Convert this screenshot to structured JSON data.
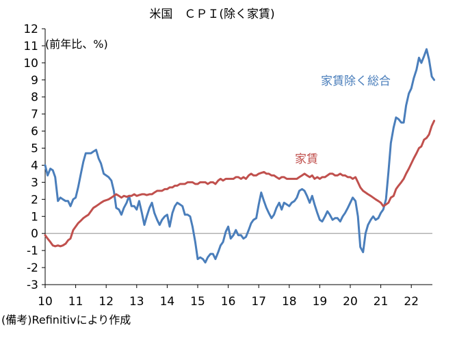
{
  "chart_data": {
    "type": "line",
    "title": "米国　ＣＰＩ(除く家賃)",
    "unit_label": "(前年比、%)",
    "note": "(備考)Refinitivにより作成",
    "xlim": [
      2010.0,
      2022.8
    ],
    "ylim": [
      -3,
      12
    ],
    "x_ticks": [
      "10",
      "11",
      "12",
      "13",
      "14",
      "15",
      "16",
      "17",
      "18",
      "19",
      "20",
      "21",
      "22"
    ],
    "y_ticks": [
      "12",
      "11",
      "10",
      "9",
      "8",
      "7",
      "6",
      "5",
      "4",
      "3",
      "2",
      "1",
      "0",
      "-1",
      "-2",
      "-3"
    ],
    "zero_line": true,
    "series": [
      {
        "name": "家賃除く総合",
        "color": "#4a7ebb",
        "points": [
          [
            2010.0,
            4.0
          ],
          [
            2010.08,
            3.4
          ],
          [
            2010.17,
            3.8
          ],
          [
            2010.25,
            3.7
          ],
          [
            2010.33,
            3.3
          ],
          [
            2010.42,
            1.9
          ],
          [
            2010.5,
            2.1
          ],
          [
            2010.58,
            2.0
          ],
          [
            2010.67,
            1.9
          ],
          [
            2010.75,
            1.9
          ],
          [
            2010.83,
            1.6
          ],
          [
            2010.92,
            2.0
          ],
          [
            2011.0,
            2.1
          ],
          [
            2011.08,
            2.7
          ],
          [
            2011.17,
            3.5
          ],
          [
            2011.25,
            4.2
          ],
          [
            2011.33,
            4.7
          ],
          [
            2011.42,
            4.7
          ],
          [
            2011.5,
            4.7
          ],
          [
            2011.58,
            4.8
          ],
          [
            2011.67,
            4.9
          ],
          [
            2011.75,
            4.4
          ],
          [
            2011.83,
            4.1
          ],
          [
            2011.92,
            3.5
          ],
          [
            2012.0,
            3.4
          ],
          [
            2012.08,
            3.3
          ],
          [
            2012.17,
            3.1
          ],
          [
            2012.25,
            2.5
          ],
          [
            2012.33,
            1.5
          ],
          [
            2012.42,
            1.4
          ],
          [
            2012.5,
            1.1
          ],
          [
            2012.58,
            1.5
          ],
          [
            2012.67,
            1.8
          ],
          [
            2012.75,
            2.2
          ],
          [
            2012.83,
            1.6
          ],
          [
            2012.92,
            1.6
          ],
          [
            2013.0,
            1.4
          ],
          [
            2013.08,
            1.9
          ],
          [
            2013.17,
            1.2
          ],
          [
            2013.25,
            0.5
          ],
          [
            2013.33,
            1.0
          ],
          [
            2013.42,
            1.5
          ],
          [
            2013.5,
            1.8
          ],
          [
            2013.58,
            1.2
          ],
          [
            2013.67,
            0.8
          ],
          [
            2013.75,
            0.5
          ],
          [
            2013.83,
            0.8
          ],
          [
            2013.92,
            1.0
          ],
          [
            2014.0,
            1.1
          ],
          [
            2014.08,
            0.4
          ],
          [
            2014.17,
            1.2
          ],
          [
            2014.25,
            1.6
          ],
          [
            2014.33,
            1.8
          ],
          [
            2014.42,
            1.7
          ],
          [
            2014.5,
            1.6
          ],
          [
            2014.58,
            1.1
          ],
          [
            2014.67,
            1.1
          ],
          [
            2014.75,
            1.0
          ],
          [
            2014.83,
            0.4
          ],
          [
            2014.92,
            -0.5
          ],
          [
            2015.0,
            -1.5
          ],
          [
            2015.08,
            -1.4
          ],
          [
            2015.17,
            -1.5
          ],
          [
            2015.25,
            -1.7
          ],
          [
            2015.33,
            -1.4
          ],
          [
            2015.42,
            -1.2
          ],
          [
            2015.5,
            -1.2
          ],
          [
            2015.58,
            -1.5
          ],
          [
            2015.67,
            -1.1
          ],
          [
            2015.75,
            -0.7
          ],
          [
            2015.83,
            -0.5
          ],
          [
            2015.92,
            0.1
          ],
          [
            2016.0,
            0.4
          ],
          [
            2016.08,
            -0.3
          ],
          [
            2016.17,
            -0.1
          ],
          [
            2016.25,
            0.2
          ],
          [
            2016.33,
            -0.1
          ],
          [
            2016.42,
            -0.1
          ],
          [
            2016.5,
            -0.3
          ],
          [
            2016.58,
            -0.2
          ],
          [
            2016.67,
            0.2
          ],
          [
            2016.75,
            0.6
          ],
          [
            2016.83,
            0.8
          ],
          [
            2016.92,
            0.9
          ],
          [
            2017.0,
            1.7
          ],
          [
            2017.08,
            2.4
          ],
          [
            2017.17,
            1.9
          ],
          [
            2017.25,
            1.5
          ],
          [
            2017.33,
            1.2
          ],
          [
            2017.42,
            0.9
          ],
          [
            2017.5,
            1.1
          ],
          [
            2017.58,
            1.5
          ],
          [
            2017.67,
            1.8
          ],
          [
            2017.75,
            1.4
          ],
          [
            2017.83,
            1.8
          ],
          [
            2017.92,
            1.7
          ],
          [
            2018.0,
            1.6
          ],
          [
            2018.08,
            1.8
          ],
          [
            2018.17,
            1.9
          ],
          [
            2018.25,
            2.1
          ],
          [
            2018.33,
            2.5
          ],
          [
            2018.42,
            2.6
          ],
          [
            2018.5,
            2.5
          ],
          [
            2018.58,
            2.2
          ],
          [
            2018.67,
            1.8
          ],
          [
            2018.75,
            2.2
          ],
          [
            2018.83,
            1.7
          ],
          [
            2018.92,
            1.2
          ],
          [
            2019.0,
            0.8
          ],
          [
            2019.08,
            0.7
          ],
          [
            2019.17,
            1.0
          ],
          [
            2019.25,
            1.3
          ],
          [
            2019.33,
            1.1
          ],
          [
            2019.42,
            0.8
          ],
          [
            2019.5,
            0.9
          ],
          [
            2019.58,
            0.9
          ],
          [
            2019.67,
            0.7
          ],
          [
            2019.75,
            1.0
          ],
          [
            2019.83,
            1.2
          ],
          [
            2019.92,
            1.5
          ],
          [
            2020.0,
            1.8
          ],
          [
            2020.08,
            2.1
          ],
          [
            2020.17,
            1.9
          ],
          [
            2020.25,
            1.0
          ],
          [
            2020.33,
            -0.8
          ],
          [
            2020.42,
            -1.1
          ],
          [
            2020.5,
            0.0
          ],
          [
            2020.58,
            0.5
          ],
          [
            2020.67,
            0.8
          ],
          [
            2020.75,
            1.0
          ],
          [
            2020.83,
            0.8
          ],
          [
            2020.92,
            0.9
          ],
          [
            2021.0,
            1.2
          ],
          [
            2021.08,
            1.4
          ],
          [
            2021.17,
            2.0
          ],
          [
            2021.25,
            3.6
          ],
          [
            2021.33,
            5.3
          ],
          [
            2021.42,
            6.2
          ],
          [
            2021.5,
            6.8
          ],
          [
            2021.58,
            6.7
          ],
          [
            2021.67,
            6.5
          ],
          [
            2021.75,
            6.5
          ],
          [
            2021.83,
            7.5
          ],
          [
            2021.92,
            8.2
          ],
          [
            2022.0,
            8.5
          ],
          [
            2022.08,
            9.1
          ],
          [
            2022.17,
            9.6
          ],
          [
            2022.25,
            10.3
          ],
          [
            2022.33,
            10.0
          ],
          [
            2022.42,
            10.4
          ],
          [
            2022.5,
            10.8
          ],
          [
            2022.58,
            10.2
          ],
          [
            2022.67,
            9.2
          ],
          [
            2022.75,
            9.0
          ]
        ]
      },
      {
        "name": "家賃",
        "color": "#c0504d",
        "points": [
          [
            2010.0,
            -0.1
          ],
          [
            2010.08,
            -0.3
          ],
          [
            2010.17,
            -0.5
          ],
          [
            2010.25,
            -0.7
          ],
          [
            2010.33,
            -0.75
          ],
          [
            2010.42,
            -0.7
          ],
          [
            2010.5,
            -0.75
          ],
          [
            2010.58,
            -0.7
          ],
          [
            2010.67,
            -0.6
          ],
          [
            2010.75,
            -0.4
          ],
          [
            2010.83,
            -0.3
          ],
          [
            2010.92,
            0.2
          ],
          [
            2011.0,
            0.4
          ],
          [
            2011.08,
            0.6
          ],
          [
            2011.17,
            0.75
          ],
          [
            2011.25,
            0.9
          ],
          [
            2011.33,
            1.0
          ],
          [
            2011.42,
            1.1
          ],
          [
            2011.5,
            1.3
          ],
          [
            2011.58,
            1.5
          ],
          [
            2011.67,
            1.6
          ],
          [
            2011.75,
            1.7
          ],
          [
            2011.83,
            1.8
          ],
          [
            2011.92,
            1.9
          ],
          [
            2012.0,
            1.95
          ],
          [
            2012.08,
            2.0
          ],
          [
            2012.17,
            2.1
          ],
          [
            2012.25,
            2.2
          ],
          [
            2012.33,
            2.3
          ],
          [
            2012.42,
            2.2
          ],
          [
            2012.5,
            2.1
          ],
          [
            2012.58,
            2.2
          ],
          [
            2012.67,
            2.15
          ],
          [
            2012.75,
            2.2
          ],
          [
            2012.83,
            2.2
          ],
          [
            2012.92,
            2.3
          ],
          [
            2013.0,
            2.2
          ],
          [
            2013.08,
            2.25
          ],
          [
            2013.17,
            2.3
          ],
          [
            2013.25,
            2.3
          ],
          [
            2013.33,
            2.25
          ],
          [
            2013.42,
            2.3
          ],
          [
            2013.5,
            2.3
          ],
          [
            2013.58,
            2.4
          ],
          [
            2013.67,
            2.5
          ],
          [
            2013.75,
            2.5
          ],
          [
            2013.83,
            2.5
          ],
          [
            2013.92,
            2.6
          ],
          [
            2014.0,
            2.6
          ],
          [
            2014.08,
            2.7
          ],
          [
            2014.17,
            2.7
          ],
          [
            2014.25,
            2.8
          ],
          [
            2014.33,
            2.8
          ],
          [
            2014.42,
            2.9
          ],
          [
            2014.5,
            2.9
          ],
          [
            2014.58,
            2.9
          ],
          [
            2014.67,
            3.0
          ],
          [
            2014.75,
            3.0
          ],
          [
            2014.83,
            3.0
          ],
          [
            2014.92,
            2.9
          ],
          [
            2015.0,
            2.9
          ],
          [
            2015.08,
            3.0
          ],
          [
            2015.17,
            3.0
          ],
          [
            2015.25,
            3.0
          ],
          [
            2015.33,
            2.9
          ],
          [
            2015.42,
            3.0
          ],
          [
            2015.5,
            3.0
          ],
          [
            2015.58,
            2.9
          ],
          [
            2015.67,
            3.1
          ],
          [
            2015.75,
            3.2
          ],
          [
            2015.83,
            3.1
          ],
          [
            2015.92,
            3.2
          ],
          [
            2016.0,
            3.2
          ],
          [
            2016.08,
            3.2
          ],
          [
            2016.17,
            3.2
          ],
          [
            2016.25,
            3.3
          ],
          [
            2016.33,
            3.3
          ],
          [
            2016.42,
            3.2
          ],
          [
            2016.5,
            3.3
          ],
          [
            2016.58,
            3.2
          ],
          [
            2016.67,
            3.4
          ],
          [
            2016.75,
            3.5
          ],
          [
            2016.83,
            3.4
          ],
          [
            2016.92,
            3.4
          ],
          [
            2017.0,
            3.5
          ],
          [
            2017.08,
            3.55
          ],
          [
            2017.17,
            3.6
          ],
          [
            2017.25,
            3.5
          ],
          [
            2017.33,
            3.5
          ],
          [
            2017.42,
            3.4
          ],
          [
            2017.5,
            3.4
          ],
          [
            2017.58,
            3.3
          ],
          [
            2017.67,
            3.2
          ],
          [
            2017.75,
            3.3
          ],
          [
            2017.83,
            3.3
          ],
          [
            2017.92,
            3.2
          ],
          [
            2018.0,
            3.2
          ],
          [
            2018.08,
            3.2
          ],
          [
            2018.17,
            3.2
          ],
          [
            2018.25,
            3.2
          ],
          [
            2018.33,
            3.3
          ],
          [
            2018.42,
            3.4
          ],
          [
            2018.5,
            3.5
          ],
          [
            2018.58,
            3.4
          ],
          [
            2018.67,
            3.3
          ],
          [
            2018.75,
            3.4
          ],
          [
            2018.83,
            3.2
          ],
          [
            2018.92,
            3.3
          ],
          [
            2019.0,
            3.2
          ],
          [
            2019.08,
            3.3
          ],
          [
            2019.17,
            3.3
          ],
          [
            2019.25,
            3.4
          ],
          [
            2019.33,
            3.5
          ],
          [
            2019.42,
            3.5
          ],
          [
            2019.5,
            3.4
          ],
          [
            2019.58,
            3.4
          ],
          [
            2019.67,
            3.5
          ],
          [
            2019.75,
            3.4
          ],
          [
            2019.83,
            3.4
          ],
          [
            2019.92,
            3.3
          ],
          [
            2020.0,
            3.3
          ],
          [
            2020.08,
            3.2
          ],
          [
            2020.17,
            3.3
          ],
          [
            2020.25,
            3.0
          ],
          [
            2020.33,
            2.7
          ],
          [
            2020.42,
            2.5
          ],
          [
            2020.5,
            2.4
          ],
          [
            2020.58,
            2.3
          ],
          [
            2020.67,
            2.2
          ],
          [
            2020.75,
            2.1
          ],
          [
            2020.83,
            2.0
          ],
          [
            2020.92,
            1.9
          ],
          [
            2021.0,
            1.8
          ],
          [
            2021.08,
            1.6
          ],
          [
            2021.17,
            1.7
          ],
          [
            2021.25,
            1.8
          ],
          [
            2021.33,
            2.1
          ],
          [
            2021.42,
            2.2
          ],
          [
            2021.5,
            2.6
          ],
          [
            2021.58,
            2.8
          ],
          [
            2021.67,
            3.0
          ],
          [
            2021.75,
            3.2
          ],
          [
            2021.83,
            3.5
          ],
          [
            2021.92,
            3.8
          ],
          [
            2022.0,
            4.1
          ],
          [
            2022.08,
            4.4
          ],
          [
            2022.17,
            4.7
          ],
          [
            2022.25,
            5.0
          ],
          [
            2022.33,
            5.1
          ],
          [
            2022.42,
            5.5
          ],
          [
            2022.5,
            5.6
          ],
          [
            2022.58,
            5.8
          ],
          [
            2022.67,
            6.3
          ],
          [
            2022.75,
            6.6
          ]
        ]
      }
    ]
  }
}
